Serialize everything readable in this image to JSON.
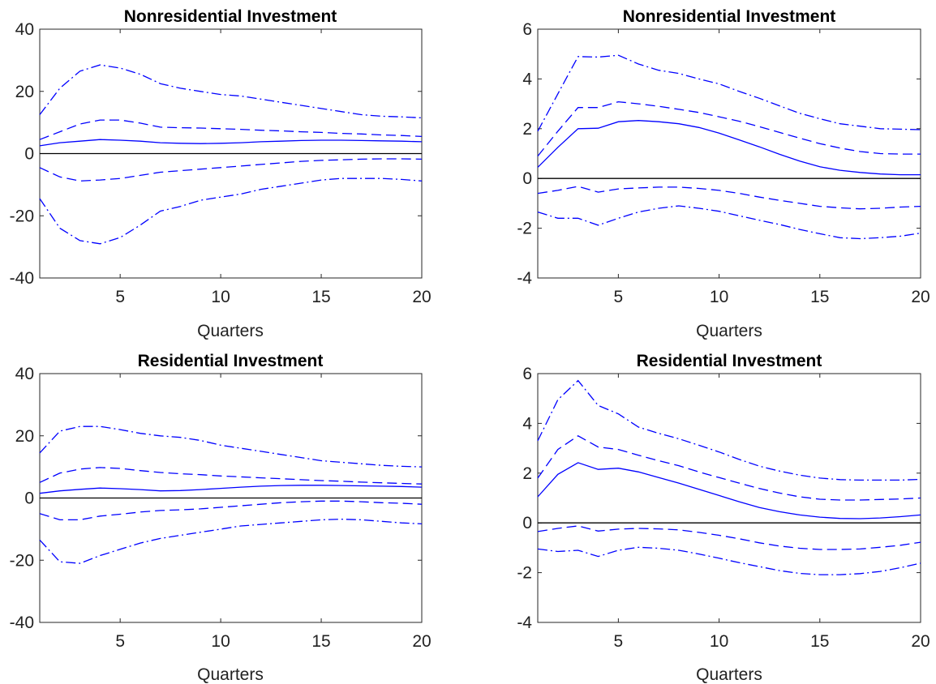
{
  "colors": {
    "series": "#0000ff",
    "zero_line": "#000000",
    "axis": "#262626"
  },
  "chart_data": [
    {
      "type": "line",
      "title": "Nonresidential Investment",
      "xlabel": "Quarters",
      "ylabel": "",
      "xlim": [
        1,
        20
      ],
      "ylim": [
        -40,
        40
      ],
      "xticks": [
        5,
        10,
        15,
        20
      ],
      "yticks": [
        -40,
        -20,
        0,
        20,
        40
      ],
      "xtick_labels": [
        "5",
        "10",
        "15",
        "20"
      ],
      "ytick_labels": [
        "-40",
        "-20",
        "0",
        "20",
        "40"
      ],
      "x": [
        1,
        2,
        3,
        4,
        5,
        6,
        7,
        8,
        9,
        10,
        11,
        12,
        13,
        14,
        15,
        16,
        17,
        18,
        19,
        20
      ],
      "series": [
        {
          "style": "solid",
          "values": [
            2.5,
            3.5,
            4.0,
            4.5,
            4.3,
            4.0,
            3.5,
            3.3,
            3.2,
            3.3,
            3.5,
            3.8,
            4.0,
            4.2,
            4.3,
            4.3,
            4.2,
            4.1,
            4.0,
            3.8
          ]
        },
        {
          "style": "dashed",
          "values": [
            4.5,
            7,
            9.5,
            10.8,
            10.8,
            9.8,
            8.5,
            8.3,
            8.2,
            8.0,
            7.8,
            7.5,
            7.3,
            7.0,
            6.8,
            6.5,
            6.3,
            6.0,
            5.8,
            5.5
          ]
        },
        {
          "style": "dashed",
          "values": [
            -4.5,
            -7.5,
            -8.8,
            -8.5,
            -8,
            -7,
            -6,
            -5.5,
            -5,
            -4.5,
            -4,
            -3.5,
            -3,
            -2.5,
            -2.2,
            -2,
            -1.8,
            -1.7,
            -1.7,
            -1.8
          ]
        },
        {
          "style": "dashdot",
          "values": [
            12.5,
            21,
            26.5,
            28.5,
            27.5,
            25.5,
            22.5,
            21,
            20,
            19,
            18.5,
            17.5,
            16.5,
            15.5,
            14.5,
            13.5,
            12.5,
            12,
            11.8,
            11.5
          ]
        },
        {
          "style": "dashdot",
          "values": [
            -14.5,
            -24,
            -28,
            -29,
            -27,
            -23,
            -18.5,
            -17,
            -15,
            -14,
            -13,
            -11.5,
            -10.5,
            -9.5,
            -8.5,
            -8,
            -8,
            -8,
            -8.3,
            -8.8
          ]
        }
      ]
    },
    {
      "type": "line",
      "title": "Nonresidential Investment",
      "xlabel": "Quarters",
      "ylabel": "",
      "xlim": [
        1,
        20
      ],
      "ylim": [
        -4,
        6
      ],
      "xticks": [
        5,
        10,
        15,
        20
      ],
      "yticks": [
        -4,
        -2,
        0,
        2,
        4,
        6
      ],
      "xtick_labels": [
        "5",
        "10",
        "15",
        "20"
      ],
      "ytick_labels": [
        "-4",
        "-2",
        "0",
        "2",
        "4",
        "6"
      ],
      "x": [
        1,
        2,
        3,
        4,
        5,
        6,
        7,
        8,
        9,
        10,
        11,
        12,
        13,
        14,
        15,
        16,
        17,
        18,
        19,
        20
      ],
      "series": [
        {
          "style": "solid",
          "values": [
            0.45,
            1.25,
            2.0,
            2.02,
            2.28,
            2.33,
            2.28,
            2.2,
            2.05,
            1.82,
            1.55,
            1.27,
            0.97,
            0.7,
            0.47,
            0.33,
            0.24,
            0.18,
            0.15,
            0.15
          ]
        },
        {
          "style": "dashed",
          "values": [
            0.9,
            1.9,
            2.85,
            2.85,
            3.08,
            3.0,
            2.9,
            2.78,
            2.65,
            2.48,
            2.3,
            2.08,
            1.85,
            1.62,
            1.4,
            1.22,
            1.08,
            1.0,
            0.98,
            0.98
          ]
        },
        {
          "style": "dashed",
          "values": [
            -0.6,
            -0.48,
            -0.32,
            -0.55,
            -0.42,
            -0.38,
            -0.35,
            -0.35,
            -0.4,
            -0.48,
            -0.6,
            -0.75,
            -0.88,
            -1.0,
            -1.12,
            -1.18,
            -1.22,
            -1.2,
            -1.15,
            -1.12
          ]
        },
        {
          "style": "dashdot",
          "values": [
            1.9,
            3.4,
            4.9,
            4.88,
            4.95,
            4.6,
            4.35,
            4.22,
            4.0,
            3.8,
            3.5,
            3.22,
            2.92,
            2.62,
            2.4,
            2.2,
            2.1,
            2.0,
            1.98,
            1.96
          ]
        },
        {
          "style": "dashdot",
          "values": [
            -1.35,
            -1.6,
            -1.6,
            -1.88,
            -1.6,
            -1.35,
            -1.2,
            -1.1,
            -1.2,
            -1.32,
            -1.5,
            -1.68,
            -1.85,
            -2.05,
            -2.22,
            -2.38,
            -2.42,
            -2.38,
            -2.32,
            -2.2
          ]
        }
      ]
    },
    {
      "type": "line",
      "title": "Residential Investment",
      "xlabel": "Quarters",
      "ylabel": "",
      "xlim": [
        1,
        20
      ],
      "ylim": [
        -40,
        40
      ],
      "xticks": [
        5,
        10,
        15,
        20
      ],
      "yticks": [
        -40,
        -20,
        0,
        20,
        40
      ],
      "xtick_labels": [
        "5",
        "10",
        "15",
        "20"
      ],
      "ytick_labels": [
        "-40",
        "-20",
        "0",
        "20",
        "40"
      ],
      "x": [
        1,
        2,
        3,
        4,
        5,
        6,
        7,
        8,
        9,
        10,
        11,
        12,
        13,
        14,
        15,
        16,
        17,
        18,
        19,
        20
      ],
      "series": [
        {
          "style": "solid",
          "values": [
            1.5,
            2.3,
            2.8,
            3.2,
            3.0,
            2.7,
            2.3,
            2.4,
            2.7,
            3.1,
            3.5,
            3.8,
            4.0,
            4.1,
            4.1,
            4.0,
            3.9,
            3.8,
            3.7,
            3.5
          ]
        },
        {
          "style": "dashed",
          "values": [
            5,
            8,
            9.3,
            9.8,
            9.5,
            8.8,
            8.2,
            7.8,
            7.5,
            7.1,
            6.8,
            6.5,
            6.2,
            5.9,
            5.6,
            5.4,
            5.1,
            4.9,
            4.7,
            4.5
          ]
        },
        {
          "style": "dashed",
          "values": [
            -5,
            -7,
            -7,
            -5.8,
            -5.2,
            -4.5,
            -4,
            -3.8,
            -3.5,
            -3,
            -2.5,
            -2,
            -1.5,
            -1.2,
            -1,
            -1,
            -1.2,
            -1.5,
            -1.7,
            -2
          ]
        },
        {
          "style": "dashdot",
          "values": [
            14.5,
            21.5,
            23,
            23,
            22,
            20.8,
            20,
            19.5,
            18.5,
            17,
            16,
            15,
            14,
            13,
            12,
            11.5,
            11,
            10.5,
            10.2,
            10
          ]
        },
        {
          "style": "dashdot",
          "values": [
            -13.5,
            -20.5,
            -21,
            -18.5,
            -16.5,
            -14.5,
            -13,
            -12,
            -11,
            -10,
            -9,
            -8.5,
            -8,
            -7.5,
            -7,
            -6.8,
            -7,
            -7.5,
            -8,
            -8.3
          ]
        }
      ]
    },
    {
      "type": "line",
      "title": "Residential Investment",
      "xlabel": "Quarters",
      "ylabel": "",
      "xlim": [
        1,
        20
      ],
      "ylim": [
        -4,
        6
      ],
      "xticks": [
        5,
        10,
        15,
        20
      ],
      "yticks": [
        -4,
        -2,
        0,
        2,
        4,
        6
      ],
      "xtick_labels": [
        "5",
        "10",
        "15",
        "20"
      ],
      "ytick_labels": [
        "-4",
        "-2",
        "0",
        "2",
        "4",
        "6"
      ],
      "x": [
        1,
        2,
        3,
        4,
        5,
        6,
        7,
        8,
        9,
        10,
        11,
        12,
        13,
        14,
        15,
        16,
        17,
        18,
        19,
        20
      ],
      "series": [
        {
          "style": "solid",
          "values": [
            1.05,
            1.95,
            2.42,
            2.15,
            2.2,
            2.05,
            1.82,
            1.6,
            1.35,
            1.1,
            0.85,
            0.62,
            0.45,
            0.32,
            0.23,
            0.18,
            0.17,
            0.2,
            0.25,
            0.32
          ]
        },
        {
          "style": "dashed",
          "values": [
            1.8,
            2.95,
            3.5,
            3.05,
            2.95,
            2.72,
            2.5,
            2.3,
            2.05,
            1.82,
            1.6,
            1.38,
            1.2,
            1.05,
            0.95,
            0.92,
            0.92,
            0.94,
            0.96,
            1.0
          ]
        },
        {
          "style": "dashed",
          "values": [
            -0.35,
            -0.22,
            -0.12,
            -0.33,
            -0.25,
            -0.22,
            -0.24,
            -0.28,
            -0.38,
            -0.5,
            -0.64,
            -0.8,
            -0.93,
            -1.02,
            -1.07,
            -1.07,
            -1.05,
            -0.98,
            -0.9,
            -0.78
          ]
        },
        {
          "style": "dashdot",
          "values": [
            3.3,
            4.95,
            5.72,
            4.72,
            4.38,
            3.85,
            3.6,
            3.38,
            3.12,
            2.85,
            2.55,
            2.28,
            2.08,
            1.92,
            1.8,
            1.74,
            1.72,
            1.72,
            1.72,
            1.75
          ]
        },
        {
          "style": "dashdot",
          "values": [
            -1.05,
            -1.15,
            -1.1,
            -1.35,
            -1.1,
            -0.98,
            -1.02,
            -1.1,
            -1.25,
            -1.42,
            -1.6,
            -1.76,
            -1.92,
            -2.03,
            -2.08,
            -2.08,
            -2.04,
            -1.95,
            -1.8,
            -1.62
          ]
        }
      ]
    }
  ]
}
